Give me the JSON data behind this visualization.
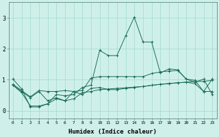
{
  "xlabel": "Humidex (Indice chaleur)",
  "bg_color": "#cff0ea",
  "line_color": "#1a6b5a",
  "grid_color": "#a0d8cc",
  "xlim": [
    -0.5,
    23.5
  ],
  "ylim": [
    -0.25,
    3.5
  ],
  "ytick_values": [
    0,
    1,
    2,
    3
  ],
  "series1_x": [
    0,
    1,
    2,
    3,
    4,
    5,
    6,
    7,
    8,
    9,
    10,
    11,
    12,
    13,
    14,
    15,
    16,
    17,
    18,
    19,
    20,
    21,
    22,
    23
  ],
  "series1_y": [
    0.85,
    0.65,
    0.45,
    0.65,
    0.62,
    0.62,
    0.65,
    0.62,
    0.65,
    1.05,
    1.1,
    1.1,
    1.1,
    1.1,
    1.1,
    1.1,
    1.2,
    1.25,
    1.28,
    1.3,
    1.02,
    0.98,
    0.62,
    1.02
  ],
  "series2_x": [
    0,
    1,
    2,
    3,
    4,
    5,
    6,
    7,
    8,
    9,
    10,
    11,
    12,
    13,
    14,
    15,
    16,
    17,
    18,
    19,
    20,
    21,
    22,
    23
  ],
  "series2_y": [
    1.02,
    0.7,
    0.12,
    0.12,
    0.22,
    0.52,
    0.48,
    0.52,
    0.75,
    0.82,
    1.95,
    1.78,
    1.78,
    2.42,
    3.02,
    2.22,
    2.22,
    1.22,
    1.35,
    1.32,
    1.02,
    0.92,
    1.02,
    0.52
  ],
  "series3_x": [
    0,
    1,
    2,
    3,
    4,
    5,
    6,
    7,
    8,
    9,
    10,
    11,
    12,
    13,
    14,
    15,
    16,
    17,
    18,
    19,
    20,
    21,
    22,
    23
  ],
  "series3_y": [
    0.82,
    0.62,
    0.42,
    0.62,
    0.32,
    0.42,
    0.32,
    0.62,
    0.52,
    0.72,
    0.75,
    0.68,
    0.68,
    0.72,
    0.75,
    0.78,
    0.82,
    0.85,
    0.88,
    0.9,
    0.92,
    0.94,
    0.95,
    0.98
  ],
  "series4_x": [
    0,
    1,
    2,
    3,
    4,
    5,
    6,
    7,
    8,
    9,
    10,
    11,
    12,
    13,
    14,
    15,
    16,
    17,
    18,
    19,
    20,
    21,
    22,
    23
  ],
  "series4_y": [
    0.82,
    0.58,
    0.15,
    0.15,
    0.22,
    0.38,
    0.32,
    0.38,
    0.58,
    0.62,
    0.68,
    0.7,
    0.72,
    0.74,
    0.76,
    0.78,
    0.82,
    0.85,
    0.87,
    0.9,
    0.92,
    0.87,
    0.62,
    0.62
  ]
}
